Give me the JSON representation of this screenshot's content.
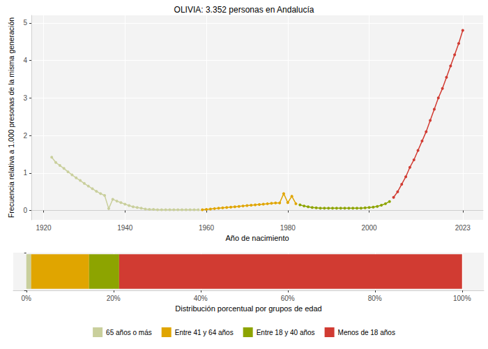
{
  "chart_data": [
    {
      "type": "line",
      "title": "OLIVIA: 3.352 personas en Andalucía",
      "x_label": "Año de nacimiento",
      "y_label": "Frecuencia relativa a 1.000 presonas de la misma generación",
      "xlim": [
        1917,
        2028
      ],
      "xticks": [
        1920,
        1940,
        1960,
        1980,
        2000,
        2023
      ],
      "ylim": [
        -0.25,
        5.2
      ],
      "yticks": [
        0,
        1,
        2,
        3,
        4,
        5
      ],
      "grid": true,
      "marker": "circle",
      "series": [
        {
          "name": "65 años o más",
          "color": "#c9cf9c",
          "x": [
            1922,
            1923,
            1924,
            1925,
            1926,
            1927,
            1928,
            1929,
            1930,
            1931,
            1932,
            1933,
            1934,
            1935,
            1936,
            1937,
            1938,
            1939,
            1940,
            1941,
            1942,
            1943,
            1944,
            1945,
            1946,
            1947,
            1948,
            1949,
            1950,
            1951,
            1952,
            1953,
            1954,
            1955,
            1956,
            1957,
            1958
          ],
          "values": [
            1.42,
            1.28,
            1.2,
            1.12,
            1.03,
            0.95,
            0.87,
            0.8,
            0.72,
            0.65,
            0.58,
            0.51,
            0.45,
            0.4,
            0.05,
            0.3,
            0.25,
            0.21,
            0.17,
            0.13,
            0.1,
            0.08,
            0.06,
            0.04,
            0.03,
            0.03,
            0.02,
            0.02,
            0.02,
            0.02,
            0.02,
            0.02,
            0.02,
            0.02,
            0.02,
            0.02,
            0.02
          ]
        },
        {
          "name": "Entre 41 y 64 años",
          "color": "#e0a500",
          "x": [
            1959,
            1960,
            1961,
            1962,
            1963,
            1964,
            1965,
            1966,
            1967,
            1968,
            1969,
            1970,
            1971,
            1972,
            1973,
            1974,
            1975,
            1976,
            1977,
            1978,
            1979,
            1980,
            1981,
            1982
          ],
          "values": [
            0.02,
            0.03,
            0.04,
            0.05,
            0.06,
            0.07,
            0.08,
            0.09,
            0.1,
            0.11,
            0.12,
            0.13,
            0.14,
            0.15,
            0.16,
            0.17,
            0.18,
            0.19,
            0.2,
            0.2,
            0.45,
            0.21,
            0.38,
            0.18
          ]
        },
        {
          "name": "Entre 18 y 40 años",
          "color": "#8da400",
          "x": [
            1983,
            1984,
            1985,
            1986,
            1987,
            1988,
            1989,
            1990,
            1991,
            1992,
            1993,
            1994,
            1995,
            1996,
            1997,
            1998,
            1999,
            2000,
            2001,
            2002,
            2003,
            2004,
            2005
          ],
          "values": [
            0.15,
            0.12,
            0.1,
            0.08,
            0.07,
            0.06,
            0.06,
            0.06,
            0.06,
            0.06,
            0.06,
            0.06,
            0.06,
            0.06,
            0.06,
            0.06,
            0.07,
            0.08,
            0.09,
            0.11,
            0.14,
            0.18,
            0.24
          ]
        },
        {
          "name": "Menos de 18 años",
          "color": "#d13b32",
          "x": [
            2006,
            2007,
            2008,
            2009,
            2010,
            2011,
            2012,
            2013,
            2014,
            2015,
            2016,
            2017,
            2018,
            2019,
            2020,
            2021,
            2022,
            2023
          ],
          "values": [
            0.35,
            0.5,
            0.7,
            0.9,
            1.15,
            1.35,
            1.6,
            1.85,
            2.1,
            2.4,
            2.7,
            3.0,
            3.25,
            3.55,
            3.85,
            4.15,
            4.45,
            4.8
          ]
        }
      ]
    },
    {
      "type": "bar",
      "orientation": "horizontal",
      "stacked": true,
      "x_label": "Distribución porcentual por grupos de edad",
      "categories": [
        null
      ],
      "xlim": [
        -3,
        105
      ],
      "xticks": [
        {
          "value": 0,
          "label": "0%"
        },
        {
          "value": 20,
          "label": "20%"
        },
        {
          "value": 40,
          "label": "40%"
        },
        {
          "value": 60,
          "label": "60%"
        },
        {
          "value": 80,
          "label": "80%"
        },
        {
          "value": 100,
          "label": "100%"
        }
      ],
      "grid": true,
      "tick_labels": "x",
      "legend": "bottom",
      "series": [
        {
          "name": "65 años o más",
          "color": "#c9cf9c",
          "values": [
            1.1
          ]
        },
        {
          "name": "Entre 41 y 64 años",
          "color": "#e0a500",
          "values": [
            13.3
          ]
        },
        {
          "name": "Entre 18 y 40 años",
          "color": "#8da400",
          "values": [
            6.9
          ]
        },
        {
          "name": "Menos de 18 años",
          "color": "#d13b32",
          "values": [
            78.7
          ]
        }
      ]
    }
  ]
}
